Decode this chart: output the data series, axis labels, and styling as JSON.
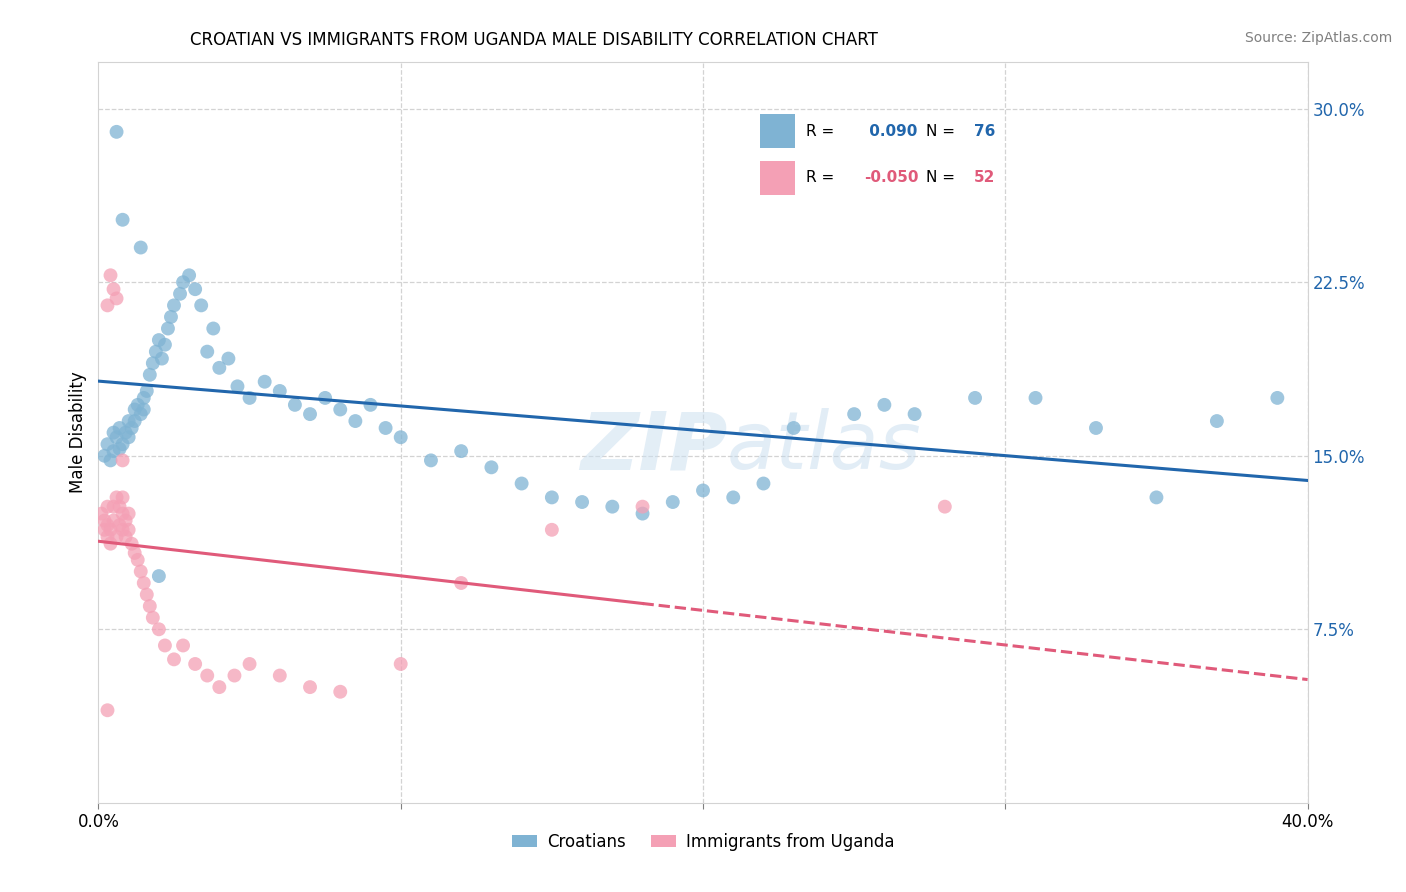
{
  "title": "CROATIAN VS IMMIGRANTS FROM UGANDA MALE DISABILITY CORRELATION CHART",
  "source": "Source: ZipAtlas.com",
  "ylabel": "Male Disability",
  "watermark": "ZIPatlas",
  "xlim": [
    0.0,
    0.4
  ],
  "ylim": [
    0.0,
    0.32
  ],
  "yticks_right": [
    0.075,
    0.15,
    0.225,
    0.3
  ],
  "ytick_labels_right": [
    "7.5%",
    "15.0%",
    "22.5%",
    "30.0%"
  ],
  "croatian_color": "#7fb3d3",
  "ugandan_color": "#f4a0b5",
  "croatian_line_color": "#2166ac",
  "ugandan_line_color": "#e05a7a",
  "R_croatian": 0.09,
  "N_croatian": 76,
  "R_ugandan": -0.05,
  "N_ugandan": 52,
  "legend_blue": "#2166ac",
  "legend_pink": "#e05a7a",
  "croatian_x": [
    0.002,
    0.003,
    0.004,
    0.005,
    0.005,
    0.006,
    0.007,
    0.007,
    0.008,
    0.009,
    0.01,
    0.01,
    0.011,
    0.012,
    0.012,
    0.013,
    0.014,
    0.015,
    0.015,
    0.016,
    0.017,
    0.018,
    0.019,
    0.02,
    0.021,
    0.022,
    0.023,
    0.024,
    0.025,
    0.027,
    0.028,
    0.03,
    0.032,
    0.034,
    0.036,
    0.038,
    0.04,
    0.043,
    0.046,
    0.05,
    0.055,
    0.06,
    0.065,
    0.07,
    0.075,
    0.08,
    0.085,
    0.09,
    0.095,
    0.1,
    0.11,
    0.12,
    0.13,
    0.14,
    0.15,
    0.16,
    0.17,
    0.18,
    0.19,
    0.2,
    0.21,
    0.22,
    0.23,
    0.25,
    0.26,
    0.27,
    0.29,
    0.31,
    0.33,
    0.35,
    0.37,
    0.39,
    0.006,
    0.008,
    0.014,
    0.02
  ],
  "croatian_y": [
    0.15,
    0.155,
    0.148,
    0.152,
    0.16,
    0.158,
    0.153,
    0.162,
    0.155,
    0.16,
    0.165,
    0.158,
    0.162,
    0.17,
    0.165,
    0.172,
    0.168,
    0.175,
    0.17,
    0.178,
    0.185,
    0.19,
    0.195,
    0.2,
    0.192,
    0.198,
    0.205,
    0.21,
    0.215,
    0.22,
    0.225,
    0.228,
    0.222,
    0.215,
    0.195,
    0.205,
    0.188,
    0.192,
    0.18,
    0.175,
    0.182,
    0.178,
    0.172,
    0.168,
    0.175,
    0.17,
    0.165,
    0.172,
    0.162,
    0.158,
    0.148,
    0.152,
    0.145,
    0.138,
    0.132,
    0.13,
    0.128,
    0.125,
    0.13,
    0.135,
    0.132,
    0.138,
    0.162,
    0.168,
    0.172,
    0.168,
    0.175,
    0.175,
    0.162,
    0.132,
    0.165,
    0.175,
    0.29,
    0.252,
    0.24,
    0.098
  ],
  "ugandan_x": [
    0.001,
    0.002,
    0.002,
    0.003,
    0.003,
    0.003,
    0.004,
    0.004,
    0.005,
    0.005,
    0.006,
    0.006,
    0.007,
    0.007,
    0.008,
    0.008,
    0.008,
    0.009,
    0.009,
    0.01,
    0.01,
    0.011,
    0.012,
    0.013,
    0.014,
    0.015,
    0.016,
    0.017,
    0.018,
    0.02,
    0.022,
    0.025,
    0.028,
    0.032,
    0.036,
    0.04,
    0.045,
    0.05,
    0.06,
    0.07,
    0.08,
    0.1,
    0.12,
    0.15,
    0.18,
    0.003,
    0.004,
    0.005,
    0.006,
    0.008,
    0.28,
    0.003
  ],
  "ugandan_y": [
    0.125,
    0.118,
    0.122,
    0.115,
    0.12,
    0.128,
    0.112,
    0.118,
    0.122,
    0.128,
    0.115,
    0.132,
    0.12,
    0.128,
    0.118,
    0.125,
    0.132,
    0.115,
    0.122,
    0.118,
    0.125,
    0.112,
    0.108,
    0.105,
    0.1,
    0.095,
    0.09,
    0.085,
    0.08,
    0.075,
    0.068,
    0.062,
    0.068,
    0.06,
    0.055,
    0.05,
    0.055,
    0.06,
    0.055,
    0.05,
    0.048,
    0.06,
    0.095,
    0.118,
    0.128,
    0.215,
    0.228,
    0.222,
    0.218,
    0.148,
    0.128,
    0.04
  ]
}
